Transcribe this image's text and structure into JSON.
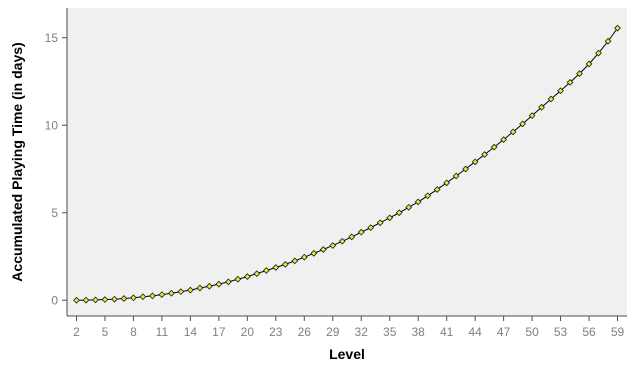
{
  "chart_data": {
    "type": "line",
    "xlabel": "Level",
    "ylabel": "Accumulated Playing Time (in days)",
    "xlim": [
      1,
      60
    ],
    "ylim": [
      -0.9,
      16.7
    ],
    "x_ticks": [
      2,
      5,
      8,
      11,
      14,
      17,
      20,
      23,
      26,
      29,
      32,
      35,
      38,
      41,
      44,
      47,
      50,
      53,
      56,
      59
    ],
    "y_ticks": [
      0,
      5,
      10,
      15
    ],
    "grid": false,
    "legend": "none",
    "colors": {
      "plot_background": "#f0f0f0",
      "axis_line": "#4d4d4d",
      "line": "#000000",
      "marker_fill": "#e8e83a",
      "marker_stroke": "#1a1a1a",
      "tick_label": "#808080"
    },
    "series": [
      {
        "marker": "diamond",
        "x": [
          2,
          3,
          4,
          5,
          6,
          7,
          8,
          9,
          10,
          11,
          12,
          13,
          14,
          15,
          16,
          17,
          18,
          19,
          20,
          21,
          22,
          23,
          24,
          25,
          26,
          27,
          28,
          29,
          30,
          31,
          32,
          33,
          34,
          35,
          36,
          37,
          38,
          39,
          40,
          41,
          42,
          43,
          44,
          45,
          46,
          47,
          48,
          49,
          50,
          51,
          52,
          53,
          54,
          55,
          56,
          57,
          58,
          59
        ],
        "y": [
          0.0,
          0.01,
          0.02,
          0.04,
          0.06,
          0.1,
          0.14,
          0.2,
          0.25,
          0.32,
          0.4,
          0.49,
          0.58,
          0.7,
          0.8,
          0.92,
          1.05,
          1.2,
          1.35,
          1.52,
          1.7,
          1.87,
          2.05,
          2.25,
          2.46,
          2.68,
          2.9,
          3.13,
          3.37,
          3.62,
          3.89,
          4.15,
          4.43,
          4.71,
          5.0,
          5.31,
          5.62,
          5.97,
          6.33,
          6.71,
          7.1,
          7.5,
          7.91,
          8.33,
          8.75,
          9.18,
          9.62,
          10.08,
          10.55,
          11.03,
          11.5,
          11.97,
          12.45,
          12.95,
          13.5,
          14.12,
          14.8,
          15.55
        ]
      }
    ]
  }
}
